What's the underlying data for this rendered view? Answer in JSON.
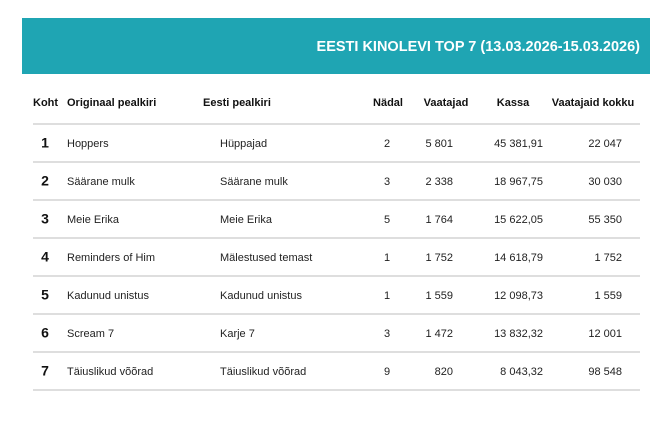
{
  "header": {
    "title": "EESTI KINOLEVI TOP 7 (13.03.2026-15.03.2026)"
  },
  "table": {
    "columns": [
      "Koht",
      "Originaal pealkiri",
      "Eesti pealkiri",
      "Nädal",
      "Vaatajad",
      "Kassa",
      "Vaatajaid kokku"
    ],
    "rows": [
      [
        "1",
        "Hoppers",
        "Hüppajad",
        "2",
        "5 801",
        "45 381,91",
        "22 047"
      ],
      [
        "2",
        "Säärane mulk",
        "Säärane mulk",
        "3",
        "2 338",
        "18 967,75",
        "30 030"
      ],
      [
        "3",
        "Meie Erika",
        "Meie Erika",
        "5",
        "1 764",
        "15 622,05",
        "55 350"
      ],
      [
        "4",
        "Reminders of Him",
        "Mälestused temast",
        "1",
        "1 752",
        "14 618,79",
        "1 752"
      ],
      [
        "5",
        "Kadunud unistus",
        "Kadunud unistus",
        "1",
        "1 559",
        "12 098,73",
        "1 559"
      ],
      [
        "6",
        "Scream 7",
        "Karje 7",
        "3",
        "1 472",
        "13 832,32",
        "12 001"
      ],
      [
        "7",
        "Täiuslikud võõrad",
        "Täiuslikud võõrad",
        "9",
        "820",
        "8 043,32",
        "98 548"
      ]
    ]
  }
}
